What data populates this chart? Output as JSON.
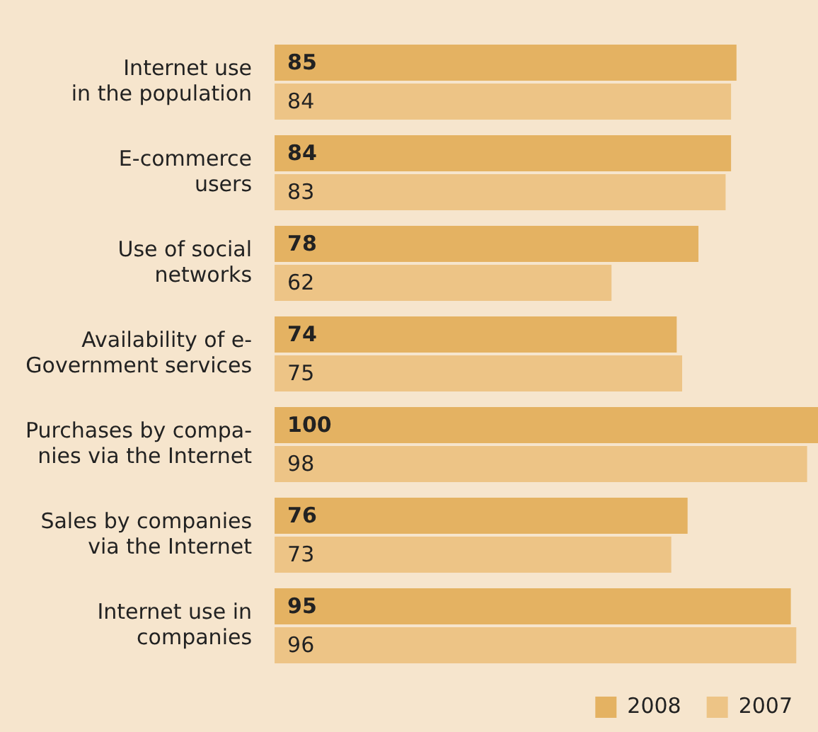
{
  "chart_data": {
    "type": "bar",
    "orientation": "horizontal",
    "categories": [
      "Internet use\nin the population",
      "E-commerce\nusers",
      "Use of social\nnetworks",
      "Availability of e-\nGovernment services",
      "Purchases by compa-\nnies via the Internet",
      "Sales by companies\nvia the Internet",
      "Internet use in\ncompanies"
    ],
    "series": [
      {
        "name": "2008",
        "color": "#e4b262",
        "values": [
          85,
          84,
          78,
          74,
          100,
          76,
          95
        ]
      },
      {
        "name": "2007",
        "color": "#edc486",
        "values": [
          84,
          83,
          62,
          75,
          98,
          73,
          96
        ]
      }
    ],
    "xlim": [
      0,
      100
    ],
    "tick_labels": "y",
    "legend": "bottom right",
    "data_labels": true
  }
}
